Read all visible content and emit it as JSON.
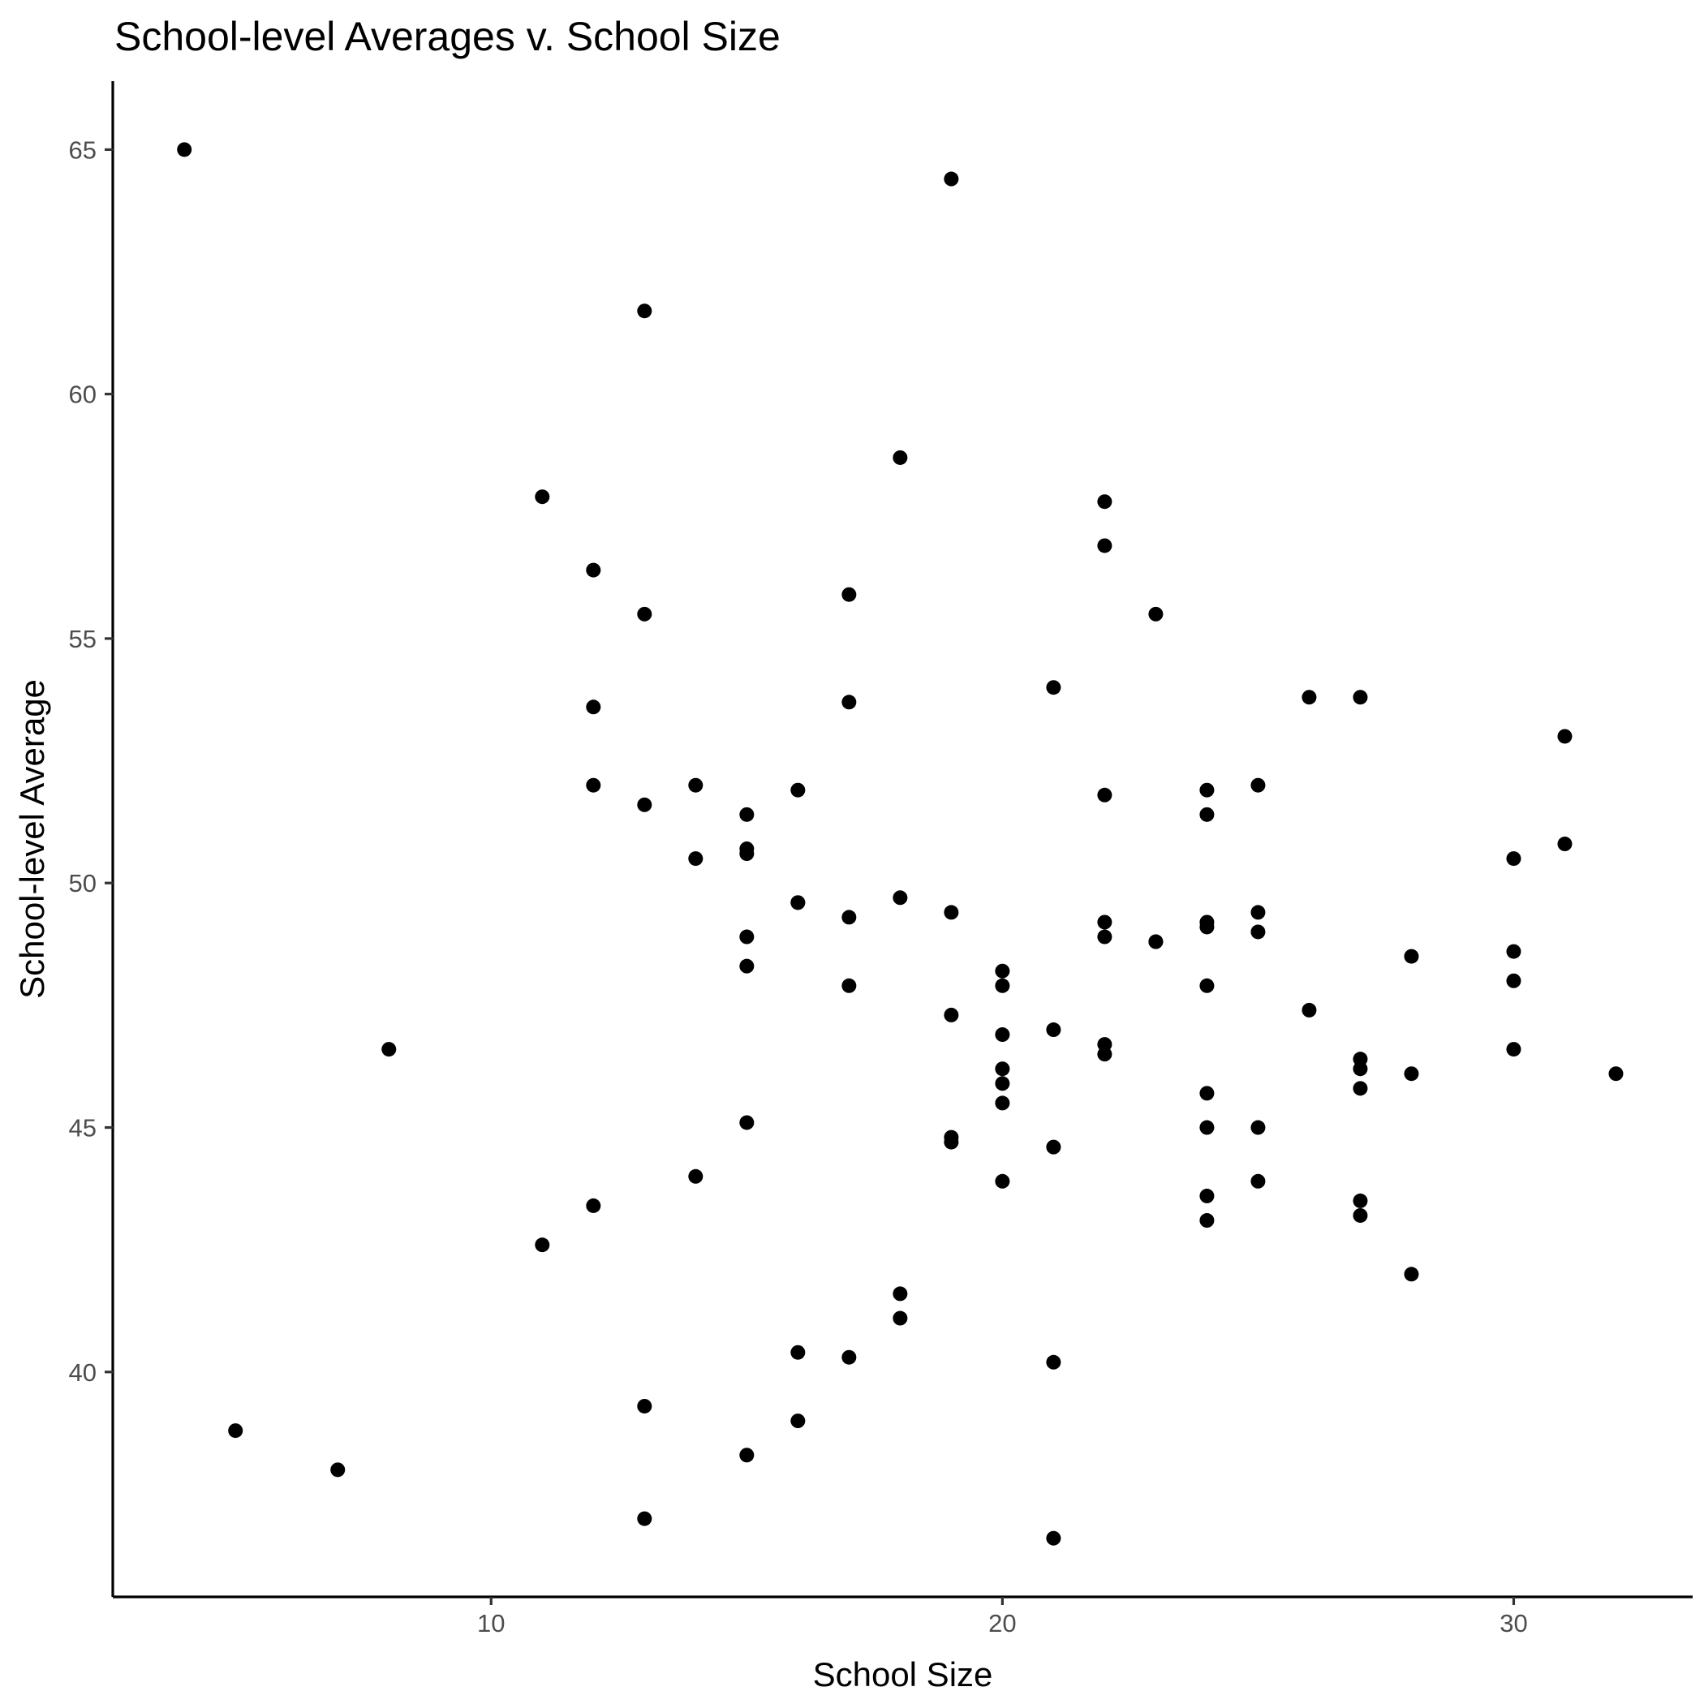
{
  "chart_data": {
    "type": "scatter",
    "title": "School-level Averages v. School Size",
    "xlabel": "School Size",
    "ylabel": "School-level Average",
    "xlim": [
      2.6,
      33.5
    ],
    "ylim": [
      35.4,
      66.4
    ],
    "xticks": [
      10,
      20,
      30
    ],
    "yticks": [
      40,
      45,
      50,
      55,
      60,
      65
    ],
    "grid": false,
    "legend": "none",
    "point_color": "#000000",
    "points": [
      [
        4,
        65.0
      ],
      [
        5,
        38.8
      ],
      [
        7,
        38.0
      ],
      [
        8,
        46.6
      ],
      [
        11,
        57.9
      ],
      [
        11,
        42.6
      ],
      [
        12,
        56.4
      ],
      [
        12,
        53.6
      ],
      [
        12,
        52.0
      ],
      [
        12,
        43.4
      ],
      [
        13,
        61.7
      ],
      [
        13,
        55.5
      ],
      [
        13,
        51.6
      ],
      [
        13,
        39.3
      ],
      [
        13,
        37.0
      ],
      [
        14,
        52.0
      ],
      [
        14,
        50.5
      ],
      [
        14,
        44.0
      ],
      [
        15,
        51.4
      ],
      [
        15,
        50.7
      ],
      [
        15,
        50.6
      ],
      [
        15,
        48.9
      ],
      [
        15,
        48.3
      ],
      [
        15,
        45.1
      ],
      [
        15,
        38.3
      ],
      [
        16,
        51.9
      ],
      [
        16,
        49.6
      ],
      [
        16,
        49.6
      ],
      [
        16,
        40.4
      ],
      [
        16,
        39.0
      ],
      [
        17,
        55.9
      ],
      [
        17,
        53.7
      ],
      [
        17,
        49.3
      ],
      [
        17,
        47.9
      ],
      [
        17,
        40.3
      ],
      [
        18,
        58.7
      ],
      [
        18,
        49.7
      ],
      [
        18,
        41.6
      ],
      [
        18,
        41.1
      ],
      [
        19,
        64.4
      ],
      [
        19,
        49.4
      ],
      [
        19,
        47.3
      ],
      [
        19,
        44.8
      ],
      [
        19,
        44.7
      ],
      [
        20,
        48.2
      ],
      [
        20,
        47.9
      ],
      [
        20,
        46.9
      ],
      [
        20,
        46.2
      ],
      [
        20,
        45.9
      ],
      [
        20,
        45.5
      ],
      [
        20,
        43.9
      ],
      [
        21,
        54.0
      ],
      [
        21,
        47.0
      ],
      [
        21,
        44.6
      ],
      [
        21,
        40.2
      ],
      [
        21,
        36.6
      ],
      [
        22,
        57.8
      ],
      [
        22,
        56.9
      ],
      [
        22,
        51.8
      ],
      [
        22,
        49.2
      ],
      [
        22,
        48.9
      ],
      [
        22,
        46.7
      ],
      [
        22,
        46.5
      ],
      [
        23,
        55.5
      ],
      [
        23,
        48.8
      ],
      [
        23,
        48.8
      ],
      [
        24,
        51.9
      ],
      [
        24,
        51.4
      ],
      [
        24,
        49.2
      ],
      [
        24,
        49.1
      ],
      [
        24,
        47.9
      ],
      [
        24,
        45.7
      ],
      [
        24,
        45.0
      ],
      [
        24,
        43.6
      ],
      [
        24,
        43.1
      ],
      [
        25,
        52.0
      ],
      [
        25,
        49.4
      ],
      [
        25,
        49.0
      ],
      [
        25,
        45.0
      ],
      [
        25,
        43.9
      ],
      [
        26,
        53.8
      ],
      [
        26,
        47.4
      ],
      [
        27,
        53.8
      ],
      [
        27,
        46.4
      ],
      [
        27,
        46.2
      ],
      [
        27,
        45.8
      ],
      [
        27,
        43.5
      ],
      [
        27,
        43.2
      ],
      [
        28,
        48.5
      ],
      [
        28,
        46.1
      ],
      [
        28,
        42.0
      ],
      [
        30,
        50.5
      ],
      [
        30,
        48.6
      ],
      [
        30,
        48.0
      ],
      [
        30,
        46.6
      ],
      [
        31,
        53.0
      ],
      [
        31,
        50.8
      ],
      [
        32,
        46.1
      ]
    ]
  }
}
